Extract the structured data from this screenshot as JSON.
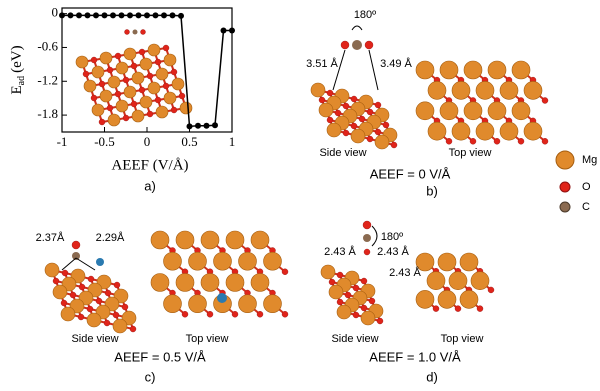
{
  "chart_data": {
    "type": "line",
    "x": [
      -1,
      -0.9,
      -0.8,
      -0.7,
      -0.6,
      -0.5,
      -0.4,
      -0.3,
      -0.2,
      -0.1,
      0,
      0.1,
      0.2,
      0.3,
      0.4,
      0.5,
      0.6,
      0.7,
      0.8,
      0.9,
      1
    ],
    "values": [
      -0.03,
      -0.03,
      -0.03,
      -0.03,
      -0.03,
      -0.03,
      -0.03,
      -0.03,
      -0.03,
      -0.03,
      -0.03,
      -0.03,
      -0.03,
      -0.03,
      -0.04,
      -2.0,
      -1.99,
      -1.99,
      -1.98,
      -0.3,
      -0.3
    ],
    "color": "#000000",
    "xlabel": "AEEF  (V/Å)",
    "ylabel": [
      "E",
      "ad",
      "(eV)"
    ],
    "xlim": [
      -1,
      1
    ],
    "xticks": [
      -1,
      -0.5,
      0,
      0.5,
      1
    ],
    "ylim": [
      -2.1,
      0.1
    ],
    "yticks": [
      0,
      -0.6,
      -1.2,
      -1.8
    ],
    "panel": "a)"
  },
  "panel_b": {
    "angle": "180º",
    "left_distance": "3.51 Å",
    "right_distance": "3.49 Å",
    "side": "Side view",
    "top": "Top view",
    "field": "AEEF = 0 V/Å",
    "label": "b)"
  },
  "legend": [
    "Mg",
    "O",
    "C"
  ],
  "panel_c": {
    "left_distance": "2.37Å",
    "right_distance": "2.29Å",
    "side": "Side view",
    "top": "Top view",
    "field": "AEEF = 0.5 V/Å",
    "label": "c)"
  },
  "panel_d": {
    "angle": "180º",
    "distances": [
      "2.43 Å",
      "2.43 Å",
      "2.43 Å"
    ],
    "side": "Side view",
    "top": "Top view",
    "field": "AEEF = 1.0 V/Å",
    "label": "d)"
  }
}
